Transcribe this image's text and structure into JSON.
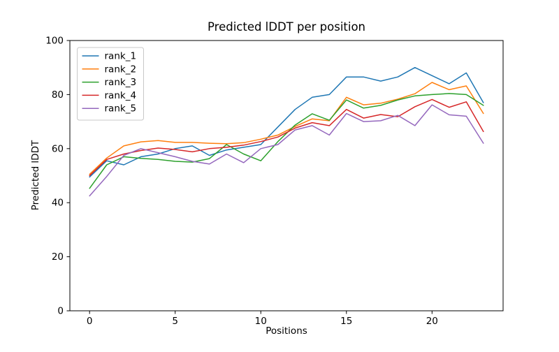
{
  "figure": {
    "title": "Predicted lDDT per position",
    "xlabel": "Positions",
    "ylabel": "Predicted lDDT"
  },
  "colors": {
    "background": "#ffffff",
    "axis": "#000000",
    "legend_border": "#c8c8c8"
  },
  "chart_data": {
    "type": "line",
    "title": "Predicted lDDT per position",
    "xlabel": "Positions",
    "ylabel": "Predicted lDDT",
    "xlim": [
      -1.15,
      24.15
    ],
    "ylim": [
      0,
      100
    ],
    "xticks": [
      0,
      5,
      10,
      15,
      20
    ],
    "yticks": [
      0,
      20,
      40,
      60,
      80,
      100
    ],
    "grid": false,
    "legend_position": "upper left",
    "line_width": 1.5,
    "x": [
      0,
      1,
      2,
      3,
      4,
      5,
      6,
      7,
      8,
      9,
      10,
      11,
      12,
      13,
      14,
      15,
      16,
      17,
      18,
      19,
      20,
      21,
      22,
      23
    ],
    "series": [
      {
        "name": "rank_1",
        "color": "#1f77b4",
        "values": [
          49.5,
          55.5,
          54,
          57,
          58,
          60,
          61,
          57.5,
          59.5,
          60.5,
          61.5,
          68,
          74.5,
          79,
          80,
          86.5,
          86.5,
          85,
          86.5,
          90,
          87,
          84,
          88,
          77
        ]
      },
      {
        "name": "rank_2",
        "color": "#ff7f0e",
        "values": [
          50.5,
          56.5,
          61,
          62.5,
          63,
          62.3,
          62.3,
          62,
          61.8,
          62.2,
          63.5,
          65,
          68.2,
          71,
          70.3,
          79,
          76.2,
          76.8,
          78.3,
          80.3,
          84.5,
          81.8,
          83.2,
          73
        ]
      },
      {
        "name": "rank_3",
        "color": "#2ca02c",
        "values": [
          45.3,
          54,
          57,
          56.4,
          56,
          55.3,
          55,
          56.3,
          61.5,
          58,
          55.5,
          62.6,
          68.7,
          72.9,
          70.5,
          78,
          75,
          76,
          78,
          79.5,
          80,
          80.4,
          80,
          76
        ]
      },
      {
        "name": "rank_4",
        "color": "#d62728",
        "values": [
          50,
          56,
          58,
          59.3,
          60.2,
          59.7,
          58.8,
          60,
          60.5,
          61.3,
          62.6,
          64.3,
          67.6,
          69.6,
          68.5,
          74.5,
          71.3,
          72.6,
          71.8,
          75.5,
          78.2,
          75.3,
          77.3,
          66.3
        ]
      },
      {
        "name": "rank_5",
        "color": "#9467bd",
        "values": [
          42.5,
          49.7,
          57.5,
          60,
          58.5,
          57,
          55.3,
          54.3,
          58,
          54.8,
          60,
          61.5,
          66.9,
          68.5,
          65,
          73,
          70,
          70.3,
          72.3,
          68.5,
          76.2,
          72.5,
          72,
          62
        ]
      }
    ]
  }
}
